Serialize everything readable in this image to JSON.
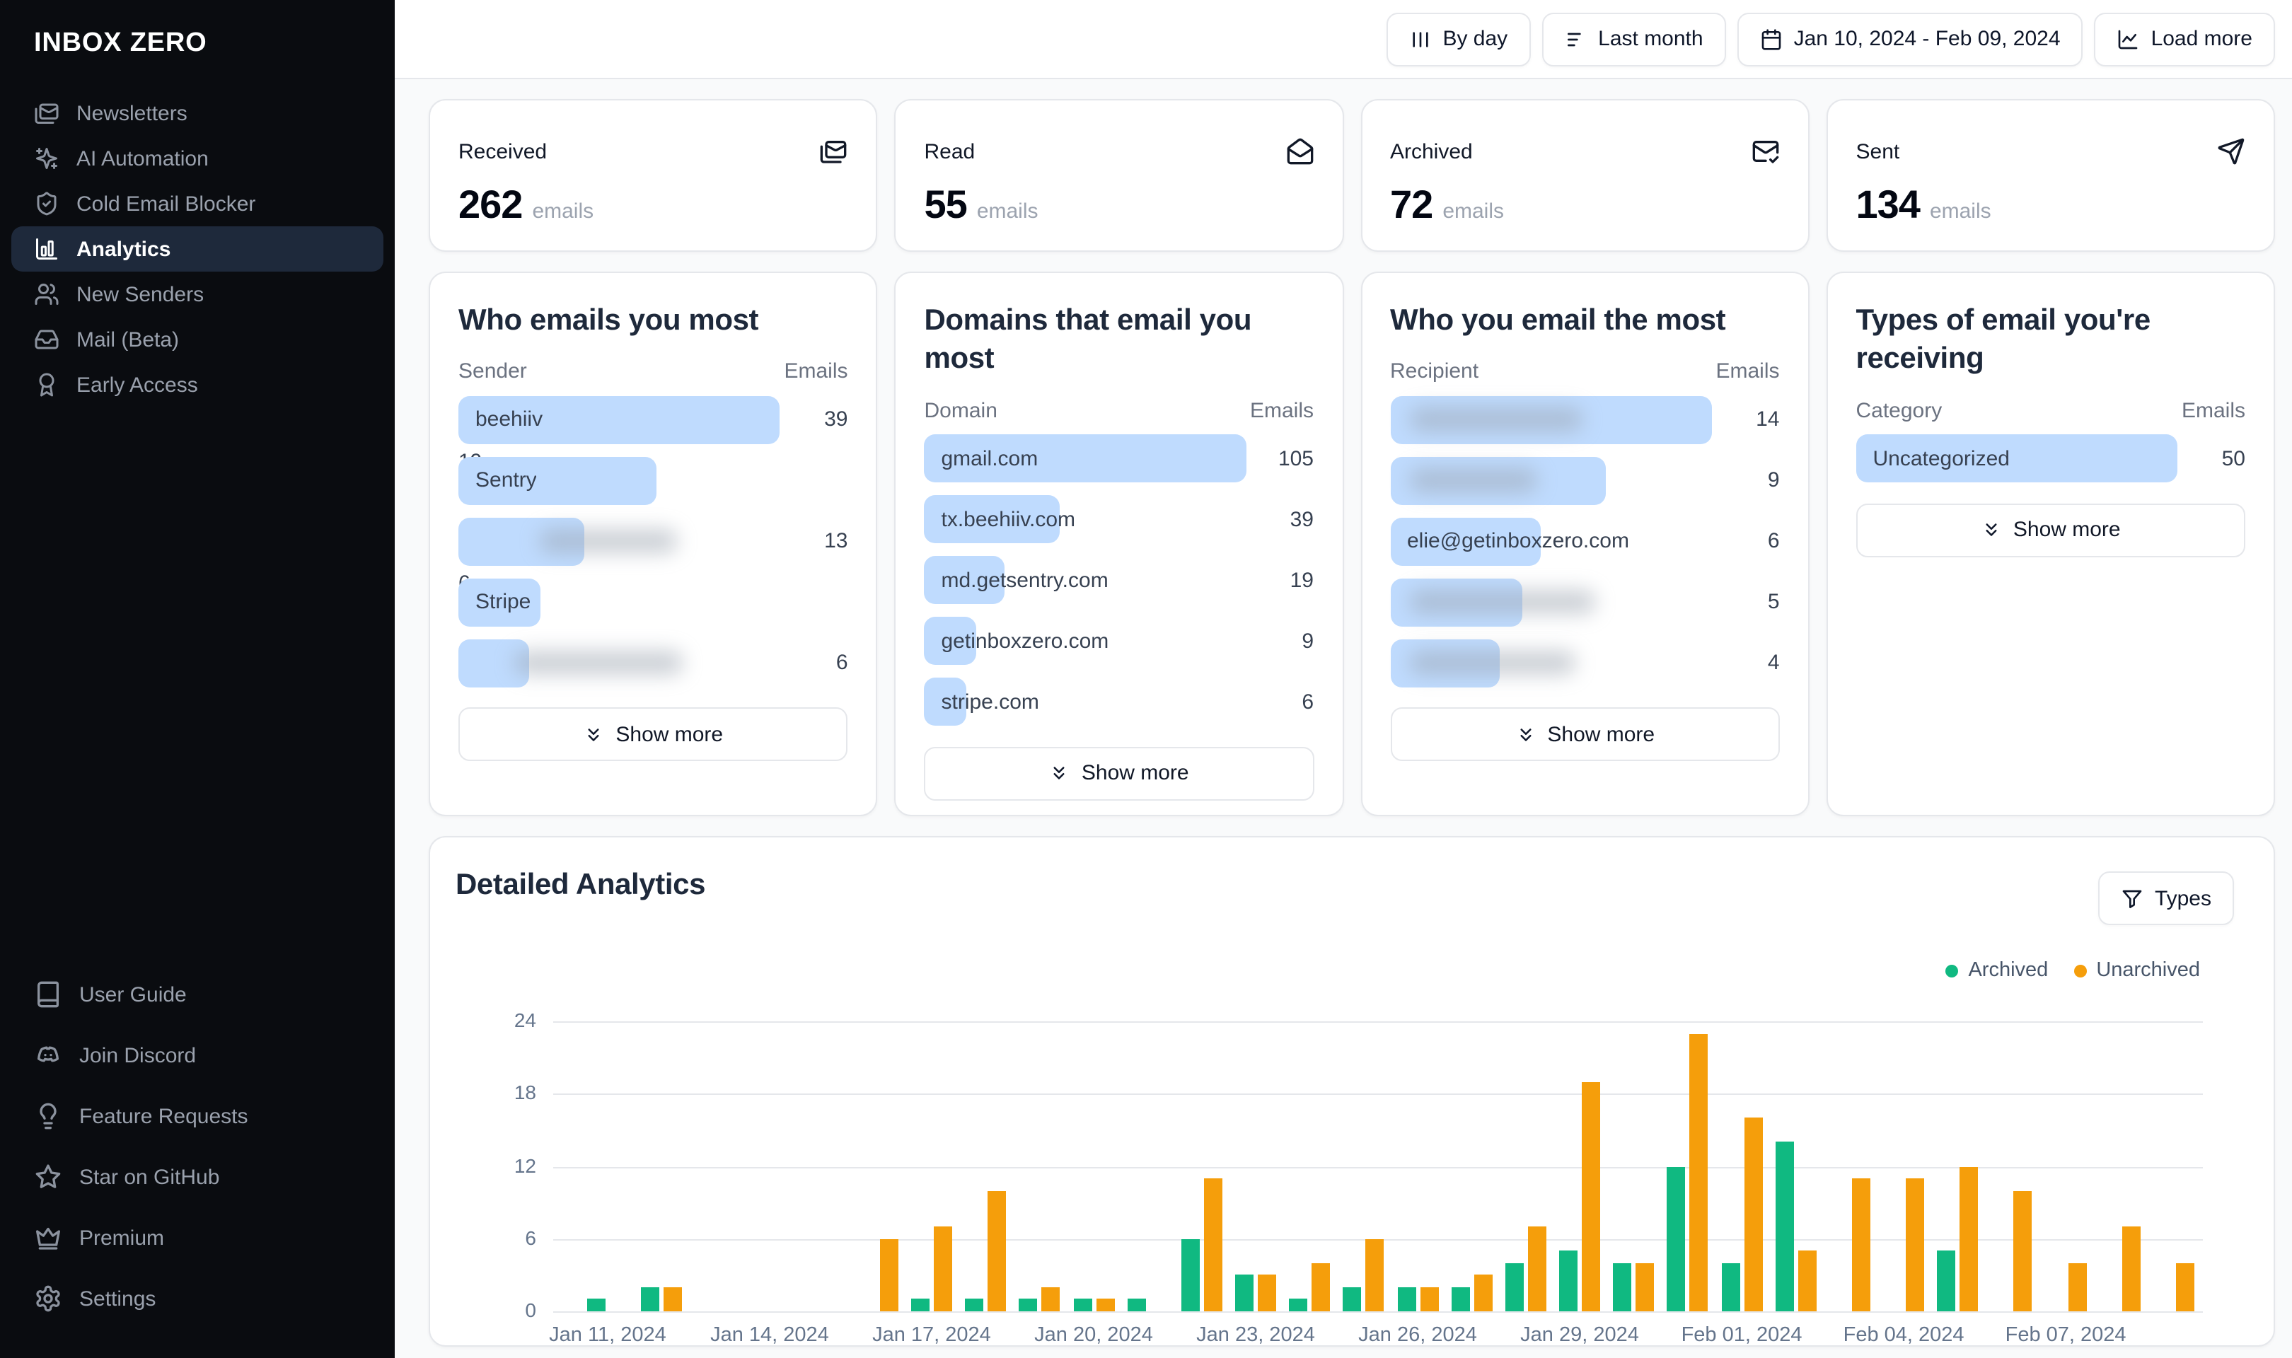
{
  "brand": "INBOX ZERO",
  "sidebar": {
    "items": [
      {
        "label": "Newsletters",
        "icon": "mails",
        "active": false
      },
      {
        "label": "AI Automation",
        "icon": "sparkles",
        "active": false
      },
      {
        "label": "Cold Email Blocker",
        "icon": "shield-check",
        "active": false
      },
      {
        "label": "Analytics",
        "icon": "chart-column",
        "active": true
      },
      {
        "label": "New Senders",
        "icon": "users",
        "active": false
      },
      {
        "label": "Mail (Beta)",
        "icon": "inbox",
        "active": false
      },
      {
        "label": "Early Access",
        "icon": "award",
        "active": false
      }
    ],
    "footer_items": [
      {
        "label": "User Guide",
        "icon": "book"
      },
      {
        "label": "Join Discord",
        "icon": "discord"
      },
      {
        "label": "Feature Requests",
        "icon": "lightbulb"
      },
      {
        "label": "Star on GitHub",
        "icon": "star"
      },
      {
        "label": "Premium",
        "icon": "crown"
      },
      {
        "label": "Settings",
        "icon": "settings"
      }
    ]
  },
  "topbar": {
    "buttons": [
      {
        "label": "By day",
        "icon": "columns"
      },
      {
        "label": "Last month",
        "icon": "lines"
      },
      {
        "label": "Jan 10, 2024 - Feb 09, 2024",
        "icon": "calendar"
      },
      {
        "label": "Load more",
        "icon": "chart-line"
      }
    ]
  },
  "stats": [
    {
      "label": "Received",
      "value": "262",
      "unit": "emails",
      "icon": "mails"
    },
    {
      "label": "Read",
      "value": "55",
      "unit": "emails",
      "icon": "mail-open"
    },
    {
      "label": "Archived",
      "value": "72",
      "unit": "emails",
      "icon": "mail-check"
    },
    {
      "label": "Sent",
      "value": "134",
      "unit": "emails",
      "icon": "send"
    }
  ],
  "panels": [
    {
      "title": "Who emails you most",
      "col_label": "Sender",
      "col_value": "Emails",
      "show_more": "Show more",
      "rows": [
        {
          "label": "beehiiv <buzz@tx.beehiiv.com>",
          "value": 39,
          "pct": 100
        },
        {
          "label": "Sentry <noreply@md.getsentry....",
          "value": 19,
          "pct": 53
        },
        {
          "label": "",
          "value": 13,
          "pct": 39,
          "blur": [
            25,
            68
          ]
        },
        {
          "label": "Stripe <notifications@stripe.co...",
          "value": 6,
          "pct": 22
        },
        {
          "label": "",
          "value": 6,
          "pct": 22,
          "blur": [
            17,
            70
          ]
        }
      ]
    },
    {
      "title": "Domains that email you most",
      "col_label": "Domain",
      "col_value": "Emails",
      "show_more": "Show more",
      "rows": [
        {
          "label": "gmail.com",
          "value": 105,
          "pct": 100
        },
        {
          "label": "tx.beehiiv.com",
          "value": 39,
          "pct": 42
        },
        {
          "label": "md.getsentry.com",
          "value": 19,
          "pct": 25
        },
        {
          "label": "getinboxzero.com",
          "value": 9,
          "pct": 16
        },
        {
          "label": "stripe.com",
          "value": 6,
          "pct": 13
        }
      ]
    },
    {
      "title": "Who you email the most",
      "col_label": "Recipient",
      "col_value": "Emails",
      "show_more": "Show more",
      "rows": [
        {
          "label": "",
          "value": 14,
          "pct": 100,
          "blur": [
            6,
            60
          ]
        },
        {
          "label": "",
          "value": 9,
          "pct": 67,
          "blur": [
            6,
            46
          ]
        },
        {
          "label": "elie@getinboxzero.com",
          "value": 6,
          "pct": 47
        },
        {
          "label": "",
          "value": 5,
          "pct": 41,
          "blur": [
            6,
            64
          ]
        },
        {
          "label": "",
          "value": 4,
          "pct": 34,
          "blur": [
            6,
            58
          ]
        }
      ]
    },
    {
      "title": "Types of email you're receiving",
      "col_label": "Category",
      "col_value": "Emails",
      "show_more": "Show more",
      "rows": [
        {
          "label": "Uncategorized",
          "value": 50,
          "pct": 100
        }
      ]
    }
  ],
  "detailed": {
    "title": "Detailed Analytics",
    "filter_label": "Types",
    "legend": [
      {
        "label": "Archived",
        "color": "#10b981"
      },
      {
        "label": "Unarchived",
        "color": "#f59e0b"
      }
    ]
  },
  "colors": {
    "archived_green": "#10b981",
    "unarchived_orange": "#f59e0b",
    "list_bar_blue": "#bfdbfe"
  },
  "chart_data": {
    "type": "bar",
    "title": "Detailed Analytics",
    "x": [
      "Jan 10, 2024",
      "Jan 11, 2024",
      "Jan 12, 2024",
      "Jan 13, 2024",
      "Jan 14, 2024",
      "Jan 15, 2024",
      "Jan 16, 2024",
      "Jan 17, 2024",
      "Jan 18, 2024",
      "Jan 19, 2024",
      "Jan 20, 2024",
      "Jan 21, 2024",
      "Jan 22, 2024",
      "Jan 23, 2024",
      "Jan 24, 2024",
      "Jan 25, 2024",
      "Jan 26, 2024",
      "Jan 27, 2024",
      "Jan 28, 2024",
      "Jan 29, 2024",
      "Jan 30, 2024",
      "Jan 31, 2024",
      "Feb 01, 2024",
      "Feb 02, 2024",
      "Feb 03, 2024",
      "Feb 04, 2024",
      "Feb 05, 2024",
      "Feb 06, 2024",
      "Feb 07, 2024",
      "Feb 08, 2024",
      "Feb 09, 2024"
    ],
    "series": [
      {
        "name": "Archived",
        "color": "#10b981",
        "values": [
          0,
          1,
          2,
          0,
          0,
          0,
          0,
          1,
          1,
          1,
          1,
          1,
          6,
          3,
          1,
          2,
          2,
          2,
          4,
          5,
          4,
          12,
          4,
          14,
          0,
          0,
          5,
          0,
          0,
          0,
          0
        ]
      },
      {
        "name": "Unarchived",
        "color": "#f59e0b",
        "values": [
          0,
          0,
          2,
          0,
          0,
          0,
          6,
          7,
          10,
          2,
          1,
          0,
          11,
          3,
          4,
          6,
          2,
          3,
          7,
          19,
          4,
          23,
          16,
          5,
          11,
          11,
          12,
          10,
          4,
          7,
          4
        ]
      }
    ],
    "ylim": [
      0,
      24
    ],
    "yticks": [
      0,
      6,
      12,
      18,
      24
    ],
    "x_tick_indices": [
      1,
      4,
      7,
      10,
      13,
      16,
      19,
      22,
      25,
      28
    ],
    "grid": true,
    "legend_position": "top-right"
  }
}
